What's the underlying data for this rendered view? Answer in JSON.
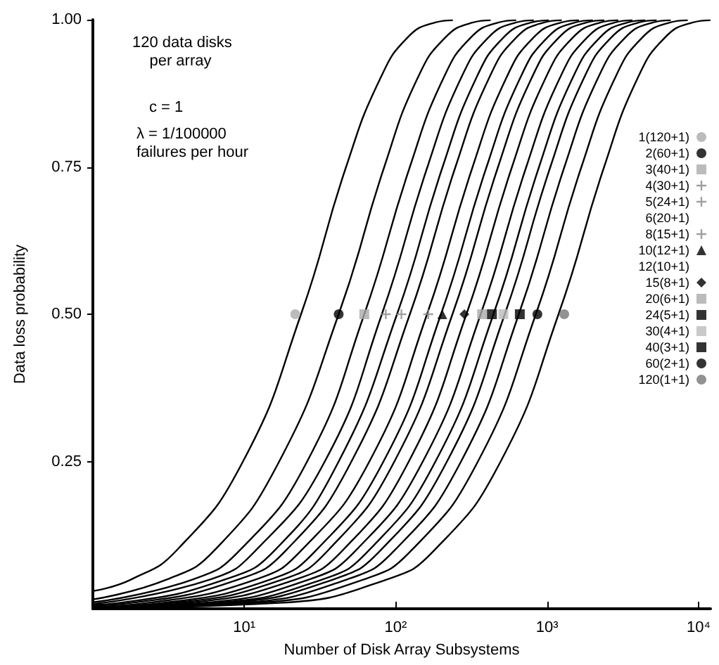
{
  "chart_data": {
    "type": "line",
    "xlabel": "Number of Disk Array Subsystems",
    "ylabel": "Data loss probability",
    "annotations": [
      "120 data disks\n    per array",
      "c = 1",
      "λ = 1/100000\nfailures per hour"
    ],
    "log": "x",
    "xlim": [
      1,
      12000
    ],
    "xticks": [
      {
        "value": 10,
        "label": "10¹"
      },
      {
        "value": 100,
        "label": "10²"
      },
      {
        "value": 1000,
        "label": "10³"
      },
      {
        "value": 10000,
        "label": "10⁴"
      }
    ],
    "ylim": [
      0,
      1
    ],
    "yticks": [
      {
        "value": 0.25,
        "label": "0.25"
      },
      {
        "value": 0.5,
        "label": "0.50"
      },
      {
        "value": 0.75,
        "label": "0.75"
      },
      {
        "value": 1,
        "label": "1.00"
      }
    ],
    "grid": false,
    "legend": "right",
    "marker": "none",
    "line_style": "solid",
    "series": [
      {
        "color": "#000000",
        "x": [
          1,
          1.8,
          3.6,
          9.8,
          23.7,
          47,
          79,
          120,
          181,
          236
        ],
        "values": [
          0.03,
          0.05,
          0.1,
          0.25,
          0.5,
          0.75,
          0.9,
          0.97,
          0.995,
          0.999
        ]
      },
      {
        "color": "#000000",
        "x": [
          1,
          3.1,
          6.4,
          17,
          42,
          84,
          139,
          213,
          321,
          419
        ],
        "values": [
          0.016,
          0.05,
          0.1,
          0.25,
          0.5,
          0.75,
          0.9,
          0.97,
          0.995,
          0.999
        ]
      },
      {
        "color": "#000000",
        "x": [
          1,
          4.6,
          9.4,
          26,
          62,
          124,
          206,
          314,
          474,
          618
        ],
        "values": [
          0.011,
          0.05,
          0.1,
          0.25,
          0.5,
          0.75,
          0.9,
          0.97,
          0.995,
          0.999
        ]
      },
      {
        "color": "#000000",
        "x": [
          1,
          6,
          12,
          34,
          81,
          162,
          269,
          410,
          619,
          808
        ],
        "values": [
          0.008,
          0.05,
          0.1,
          0.25,
          0.5,
          0.75,
          0.9,
          0.97,
          0.995,
          0.999
        ]
      },
      {
        "color": "#000000",
        "x": [
          1,
          1.5,
          7.5,
          16,
          42,
          102,
          204,
          339,
          516,
          779,
          1017
        ],
        "values": [
          0.007,
          0.01,
          0.05,
          0.1,
          0.25,
          0.5,
          0.75,
          0.9,
          0.97,
          0.995,
          0.999
        ]
      },
      {
        "color": "#000000",
        "x": [
          1,
          1.8,
          9.2,
          19,
          51,
          124,
          248,
          412,
          627,
          947,
          1236
        ],
        "values": [
          0.006,
          0.01,
          0.05,
          0.1,
          0.25,
          0.5,
          0.75,
          0.9,
          0.97,
          0.995,
          0.999
        ]
      },
      {
        "color": "#000000",
        "x": [
          1,
          2.3,
          12,
          24,
          67,
          161,
          322,
          535,
          815,
          1230,
          1605
        ],
        "values": [
          0.004,
          0.01,
          0.05,
          0.1,
          0.25,
          0.5,
          0.75,
          0.9,
          0.97,
          0.995,
          0.999
        ]
      },
      {
        "color": "#000000",
        "x": [
          1,
          2.9,
          15,
          30,
          83,
          199,
          398,
          661,
          1007,
          1520,
          1984
        ],
        "values": [
          0.003,
          0.01,
          0.05,
          0.1,
          0.25,
          0.5,
          0.75,
          0.9,
          0.97,
          0.995,
          0.999
        ]
      },
      {
        "color": "#000000",
        "x": [
          1,
          3.4,
          18,
          36,
          98,
          237,
          474,
          787,
          1199,
          1811,
          2363
        ],
        "values": [
          0.003,
          0.01,
          0.05,
          0.1,
          0.25,
          0.5,
          0.75,
          0.9,
          0.97,
          0.995,
          0.999
        ]
      },
      {
        "color": "#000000",
        "x": [
          1,
          4.2,
          22,
          45,
          122,
          293,
          586,
          973,
          1483,
          2239,
          2921
        ],
        "values": [
          0.002,
          0.01,
          0.05,
          0.1,
          0.25,
          0.5,
          0.75,
          0.9,
          0.97,
          0.995,
          0.999
        ]
      },
      {
        "color": "#000000",
        "x": [
          1,
          5.3,
          27,
          55,
          151,
          364,
          728,
          1208,
          1842,
          2781,
          3629
        ],
        "values": [
          0.002,
          0.01,
          0.05,
          0.1,
          0.25,
          0.5,
          0.75,
          0.9,
          0.97,
          0.995,
          0.999
        ]
      },
      {
        "color": "#000000",
        "x": [
          1,
          6.4,
          33,
          67,
          183,
          442,
          884,
          1467,
          2237,
          3377,
          4407
        ],
        "values": [
          0.002,
          0.01,
          0.05,
          0.1,
          0.25,
          0.5,
          0.75,
          0.9,
          0.97,
          0.995,
          0.999
        ]
      },
      {
        "color": "#000000",
        "x": [
          1,
          7.6,
          39,
          80,
          218,
          525,
          1050,
          1743,
          2657,
          4011,
          5234
        ],
        "values": [
          0.001,
          0.01,
          0.05,
          0.1,
          0.25,
          0.5,
          0.75,
          0.9,
          0.97,
          0.995,
          0.999
        ]
      },
      {
        "color": "#000000",
        "x": [
          1,
          9.4,
          48,
          99,
          270,
          650,
          1300,
          2158,
          3289,
          4966,
          6481
        ],
        "values": [
          0.001,
          0.01,
          0.05,
          0.1,
          0.25,
          0.5,
          0.75,
          0.9,
          0.97,
          0.995,
          0.999
        ]
      },
      {
        "color": "#000000",
        "x": [
          1,
          12,
          62,
          128,
          349,
          842,
          1684,
          2795,
          4261,
          6433,
          8395
        ],
        "values": [
          0.001,
          0.01,
          0.05,
          0.1,
          0.25,
          0.5,
          0.75,
          0.9,
          0.97,
          0.995,
          0.999
        ]
      },
      {
        "color": "#000000",
        "x": [
          1,
          17,
          88,
          181,
          493,
          1189,
          2378,
          3947,
          6016,
          9084,
          11854
        ],
        "values": [
          0.001,
          0.01,
          0.05,
          0.1,
          0.25,
          0.5,
          0.75,
          0.9,
          0.97,
          0.995,
          0.999
        ]
      },
      {
        "type": "scatter",
        "name": "1(120+1)",
        "marker": "circle",
        "color": "#aaaaaa",
        "x": [
          21.7
        ],
        "values": [
          0.5
        ]
      },
      {
        "type": "scatter",
        "name": "2(60+1)",
        "marker": "circle",
        "color": "#000000",
        "x": [
          42
        ],
        "values": [
          0.5
        ]
      },
      {
        "type": "scatter",
        "name": "3(40+1)",
        "marker": "square",
        "color": "#aaaaaa",
        "x": [
          62
        ],
        "values": [
          0.5
        ]
      },
      {
        "type": "scatter",
        "name": "4(30+1)",
        "marker": "cross",
        "color": "#888888",
        "x": [
          86
        ],
        "values": [
          0.5
        ]
      },
      {
        "type": "scatter",
        "name": "5(24+1)",
        "marker": "cross",
        "color": "#888888",
        "x": [
          109
        ],
        "values": [
          0.5
        ]
      },
      {
        "type": "scatter",
        "name": "6(20+1)",
        "marker": "none",
        "color": "#000000"
      },
      {
        "type": "scatter",
        "name": "8(15+1)",
        "marker": "cross",
        "color": "#888888",
        "x": [
          164
        ],
        "values": [
          0.5
        ]
      },
      {
        "type": "scatter",
        "name": "10(12+1)",
        "marker": "triangle",
        "color": "#000000",
        "x": [
          203
        ],
        "values": [
          0.5
        ]
      },
      {
        "type": "scatter",
        "name": "12(10+1)",
        "marker": "none",
        "color": "#000000"
      },
      {
        "type": "scatter",
        "name": "15(8+1)",
        "marker": "diamond",
        "color": "#000000",
        "x": [
          284
        ],
        "values": [
          0.5
        ]
      },
      {
        "type": "scatter",
        "name": "20(6+1)",
        "marker": "square",
        "color": "#aaaaaa",
        "x": [
          372
        ],
        "values": [
          0.5
        ]
      },
      {
        "type": "scatter",
        "name": "24(5+1)",
        "marker": "square",
        "color": "#000000",
        "x": [
          432
        ],
        "values": [
          0.5
        ]
      },
      {
        "type": "scatter",
        "name": "30(4+1)",
        "marker": "square",
        "color": "#bbbbbb",
        "x": [
          514
        ],
        "values": [
          0.5
        ]
      },
      {
        "type": "scatter",
        "name": "40(3+1)",
        "marker": "square",
        "color": "#000000",
        "x": [
          660
        ],
        "values": [
          0.5
        ]
      },
      {
        "type": "scatter",
        "name": "60(2+1)",
        "marker": "circle",
        "color": "#000000",
        "x": [
          862
        ],
        "values": [
          0.5
        ]
      },
      {
        "type": "scatter",
        "name": "120(1+1)",
        "marker": "circle",
        "color": "#777777",
        "x": [
          1297
        ],
        "values": [
          0.5
        ]
      }
    ]
  }
}
